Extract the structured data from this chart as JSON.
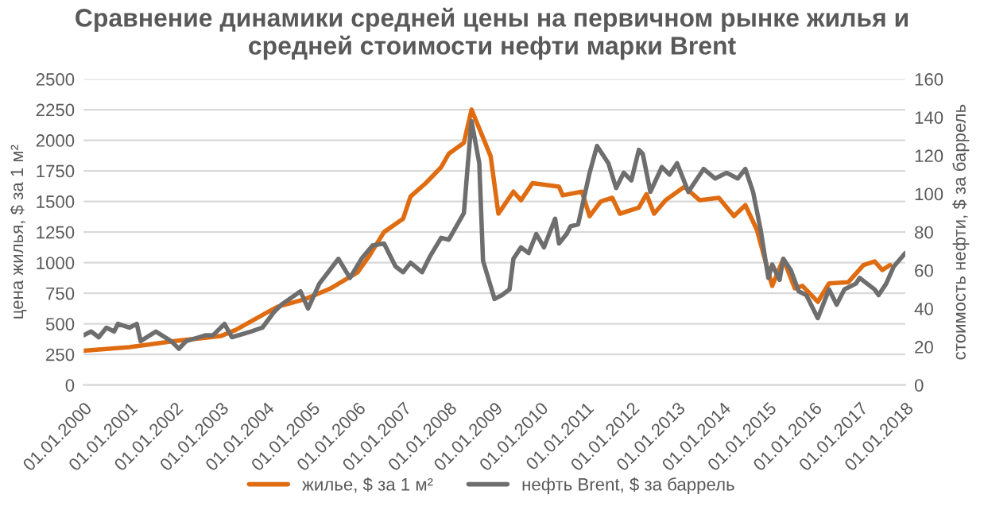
{
  "chart_data": {
    "type": "line",
    "title": "Сравнение динамики средней цены на первичном рынке жилья и\nсредней стоимости нефти марки Brent",
    "ylabel": "цена жилья, $ за 1 м²",
    "y2label": "стоимость нефти, $ за баррель",
    "series": [
      {
        "name": "жилье, $ за 1 м²",
        "color": "#e06c12",
        "x": [
          "2000-01",
          "2001-01",
          "2002-01",
          "2003-01",
          "2003-05",
          "2004-01",
          "2004-04",
          "2004-11",
          "2005-06",
          "2006-01",
          "2006-04",
          "2006-08",
          "2007-01",
          "2007-03",
          "2007-07",
          "2007-11",
          "2008-01",
          "2008-05",
          "2008-07",
          "2008-12",
          "2009-02",
          "2009-06",
          "2009-08",
          "2009-11",
          "2010-06",
          "2010-07",
          "2010-12",
          "2011-02",
          "2011-05",
          "2011-08",
          "2011-10",
          "2012-03",
          "2012-05",
          "2012-07",
          "2012-10",
          "2013-03",
          "2013-07",
          "2013-12",
          "2014-04",
          "2014-07",
          "2014-10",
          "2015-02",
          "2015-05",
          "2015-08",
          "2015-10",
          "2016-02",
          "2016-05",
          "2016-10",
          "2017-02",
          "2017-05",
          "2017-07",
          "2017-09"
        ],
        "values": [
          280,
          310,
          360,
          400,
          450,
          590,
          640,
          700,
          790,
          920,
          1050,
          1250,
          1360,
          1540,
          1650,
          1780,
          1890,
          1980,
          2250,
          1870,
          1400,
          1580,
          1510,
          1650,
          1620,
          1550,
          1580,
          1380,
          1500,
          1530,
          1400,
          1450,
          1560,
          1400,
          1510,
          1620,
          1510,
          1530,
          1380,
          1470,
          1270,
          810,
          1030,
          790,
          810,
          680,
          830,
          840,
          980,
          1010,
          940,
          980
        ]
      },
      {
        "name": "нефть Brent, $ за баррель",
        "color": "#6e6e6e",
        "axis": "y2",
        "x": [
          "2000-01",
          "2000-03",
          "2000-05",
          "2000-07",
          "2000-09",
          "2000-10",
          "2001-01",
          "2001-03",
          "2001-04",
          "2001-08",
          "2001-12",
          "2002-02",
          "2002-04",
          "2002-09",
          "2002-11",
          "2003-02",
          "2003-04",
          "2003-09",
          "2003-12",
          "2004-03",
          "2004-05",
          "2004-10",
          "2004-12",
          "2005-03",
          "2005-08",
          "2005-11",
          "2006-02",
          "2006-05",
          "2006-08",
          "2006-11",
          "2007-01",
          "2007-03",
          "2007-06",
          "2007-08",
          "2007-11",
          "2008-01",
          "2008-05",
          "2008-06",
          "2008-07",
          "2008-09",
          "2008-10",
          "2009-01",
          "2009-03",
          "2009-05",
          "2009-06",
          "2009-08",
          "2009-10",
          "2009-12",
          "2010-02",
          "2010-05",
          "2010-06",
          "2010-08",
          "2010-09",
          "2010-11",
          "2011-02",
          "2011-04",
          "2011-07",
          "2011-09",
          "2011-11",
          "2012-01",
          "2012-03",
          "2012-04",
          "2012-06",
          "2012-09",
          "2012-11",
          "2013-01",
          "2013-04",
          "2013-08",
          "2013-11",
          "2014-02",
          "2014-05",
          "2014-07",
          "2014-09",
          "2014-11",
          "2015-01",
          "2015-02",
          "2015-04",
          "2015-05",
          "2015-07",
          "2015-09",
          "2015-11",
          "2016-02",
          "2016-05",
          "2016-07",
          "2016-09",
          "2016-12",
          "2017-01",
          "2017-05",
          "2017-06",
          "2017-08",
          "2017-10",
          "2018-01"
        ],
        "values": [
          26,
          28,
          25,
          30,
          28,
          32,
          30,
          32,
          23,
          28,
          23,
          19,
          23,
          26,
          26,
          32,
          25,
          28,
          30,
          38,
          42,
          49,
          40,
          53,
          66,
          56,
          66,
          73,
          74,
          62,
          59,
          64,
          59,
          67,
          77,
          76,
          90,
          115,
          138,
          116,
          65,
          45,
          47,
          50,
          66,
          72,
          69,
          79,
          72,
          87,
          74,
          79,
          83,
          84,
          111,
          125,
          116,
          103,
          111,
          107,
          123,
          121,
          101,
          114,
          110,
          116,
          101,
          113,
          108,
          111,
          108,
          113,
          101,
          81,
          56,
          63,
          55,
          66,
          60,
          49,
          47,
          35,
          50,
          42,
          50,
          53,
          56,
          50,
          47,
          53,
          62,
          69
        ]
      }
    ],
    "xlim": [
      "2000-01-01",
      "2018-01-01"
    ],
    "xticks": [
      {
        "value": "2000-01-01",
        "label": "01.01.2000"
      },
      {
        "value": "2001-01-01",
        "label": "01.01.2001"
      },
      {
        "value": "2002-01-01",
        "label": "01.01.2002"
      },
      {
        "value": "2003-01-01",
        "label": "01.01.2003"
      },
      {
        "value": "2004-01-01",
        "label": "01.01.2004"
      },
      {
        "value": "2005-01-01",
        "label": "01.01.2005"
      },
      {
        "value": "2006-01-01",
        "label": "01.01.2006"
      },
      {
        "value": "2007-01-01",
        "label": "01.01.2007"
      },
      {
        "value": "2008-01-01",
        "label": "01.01.2008"
      },
      {
        "value": "2009-01-01",
        "label": "01.01.2009"
      },
      {
        "value": "2010-01-01",
        "label": "01.01.2010"
      },
      {
        "value": "2011-01-01",
        "label": "01.01.2011"
      },
      {
        "value": "2012-01-01",
        "label": "01.01.2012"
      },
      {
        "value": "2013-01-01",
        "label": "01.01.2013"
      },
      {
        "value": "2014-01-01",
        "label": "01.01.2014"
      },
      {
        "value": "2015-01-01",
        "label": "01.01.2015"
      },
      {
        "value": "2016-01-01",
        "label": "01.01.2016"
      },
      {
        "value": "2017-01-01",
        "label": "01.01.2017"
      },
      {
        "value": "2018-01-01",
        "label": "01.01.2018"
      }
    ],
    "ylim": [
      0,
      2500
    ],
    "yticks": [
      0,
      250,
      500,
      750,
      1000,
      1250,
      1500,
      1750,
      2000,
      2250,
      2500
    ],
    "y2lim": [
      0,
      160
    ],
    "y2ticks": [
      0,
      20,
      40,
      60,
      80,
      100,
      120,
      140,
      160
    ],
    "grid": "y",
    "legend": "bottom",
    "marker": "none",
    "line_style": "solid"
  }
}
